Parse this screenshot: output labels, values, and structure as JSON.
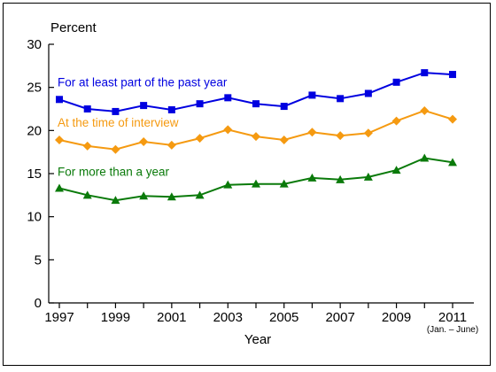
{
  "chart_data": {
    "type": "line",
    "title": "",
    "ylabel": "Percent",
    "xlabel": "Year",
    "x": [
      1997,
      1998,
      1999,
      2000,
      2001,
      2002,
      2003,
      2004,
      2005,
      2006,
      2007,
      2008,
      2009,
      2010,
      2011
    ],
    "xticks": [
      "1997",
      "1999",
      "2001",
      "2003",
      "2005",
      "2007",
      "2009",
      "2011"
    ],
    "xtick_note": "(Jan. – June)",
    "yticks": [
      "0",
      "5",
      "10",
      "15",
      "20",
      "25",
      "30"
    ],
    "ylim": [
      0,
      30
    ],
    "xlim": [
      1997,
      2011
    ],
    "grid": false,
    "legend": "inline labels above each series",
    "series": [
      {
        "name": "For at least part of the past year",
        "color": "#0000e0",
        "marker": "square",
        "values": [
          23.6,
          22.5,
          22.2,
          22.9,
          22.4,
          23.1,
          23.8,
          23.1,
          22.8,
          24.1,
          23.7,
          24.3,
          25.6,
          26.7,
          26.5
        ]
      },
      {
        "name": "At the time of interview",
        "color": "#f59a11",
        "marker": "diamond",
        "values": [
          18.9,
          18.2,
          17.8,
          18.7,
          18.3,
          19.1,
          20.1,
          19.3,
          18.9,
          19.8,
          19.4,
          19.7,
          21.1,
          22.3,
          21.3
        ]
      },
      {
        "name": "For more than a year",
        "color": "#0a7a0a",
        "marker": "triangle",
        "values": [
          13.3,
          12.5,
          11.9,
          12.4,
          12.3,
          12.5,
          13.7,
          13.8,
          13.8,
          14.5,
          14.3,
          14.6,
          15.4,
          16.8,
          16.3
        ]
      }
    ]
  }
}
